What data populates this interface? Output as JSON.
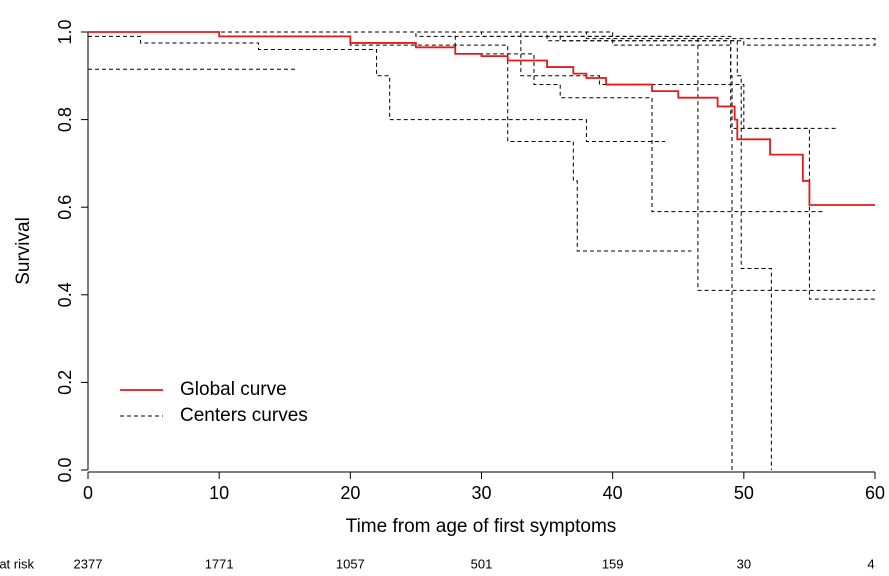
{
  "chart_data": {
    "type": "step",
    "xlabel": "Time from age of first symptoms",
    "ylabel": "Survival",
    "xlim": [
      0,
      60
    ],
    "ylim": [
      0,
      1
    ],
    "xticks": [
      0,
      10,
      20,
      30,
      40,
      50,
      60
    ],
    "yticks": [
      {
        "value": 0,
        "label": "0.0"
      },
      0.2,
      0.4,
      0.6,
      0.8,
      {
        "value": 1,
        "label": "1.0"
      }
    ],
    "legend": "bottom-left",
    "series": [
      {
        "name": "Global curve",
        "color": "#e41a1c",
        "dash": false,
        "curves": [
          {
            "x": [
              0,
              10,
              20,
              25,
              28,
              30,
              32,
              35,
              37,
              38,
              39.5,
              43,
              45,
              48,
              49.3,
              49.5,
              52,
              54.5,
              55,
              60
            ],
            "values": [
              1,
              0.99,
              0.975,
              0.965,
              0.95,
              0.945,
              0.935,
              0.92,
              0.905,
              0.895,
              0.88,
              0.865,
              0.85,
              0.83,
              0.8,
              0.755,
              0.72,
              0.66,
              0.605,
              0.605
            ]
          }
        ]
      },
      {
        "name": "Centers curves",
        "color": "#000000",
        "dash": true,
        "curves": [
          {
            "x": [
              0,
              16
            ],
            "values": [
              0.915,
              0.915
            ]
          },
          {
            "x": [
              0,
              4,
              13,
              22,
              23,
              32,
              38,
              44
            ],
            "values": [
              0.99,
              0.975,
              0.96,
              0.9,
              0.8,
              0.8,
              0.75,
              0.75
            ]
          },
          {
            "x": [
              0,
              20,
              32,
              37,
              37.3,
              46
            ],
            "values": [
              1,
              0.97,
              0.75,
              0.66,
              0.5,
              0.5
            ]
          },
          {
            "x": [
              0,
              25,
              46.5,
              60
            ],
            "values": [
              1,
              0.99,
              0.41,
              0.41
            ]
          },
          {
            "x": [
              0,
              30,
              49,
              49.1
            ],
            "values": [
              1,
              0.99,
              0.9,
              0
            ]
          },
          {
            "x": [
              0,
              35,
              49.5,
              49.8,
              52,
              52.1
            ],
            "values": [
              1,
              0.98,
              0.9,
              0.46,
              0.46,
              0
            ]
          },
          {
            "x": [
              0,
              38,
              52,
              60
            ],
            "values": [
              1,
              0.985,
              0.985,
              0.97
            ]
          },
          {
            "x": [
              0,
              40,
              49,
              55,
              60
            ],
            "values": [
              1,
              0.97,
              0.78,
              0.39,
              0.39
            ]
          },
          {
            "x": [
              0,
              33,
              39,
              50,
              57
            ],
            "values": [
              1,
              0.9,
              0.88,
              0.78,
              0.78
            ]
          },
          {
            "x": [
              0,
              28,
              34,
              36,
              43,
              52,
              56
            ],
            "values": [
              1,
              0.95,
              0.88,
              0.85,
              0.59,
              0.59,
              0.59
            ]
          },
          {
            "x": [
              0,
              36,
              50,
              60
            ],
            "values": [
              1,
              0.98,
              0.97,
              0.985
            ]
          }
        ]
      }
    ],
    "risk_label": "at risk",
    "risk_counts": [
      2377,
      1771,
      1057,
      501,
      159,
      30,
      4
    ]
  }
}
